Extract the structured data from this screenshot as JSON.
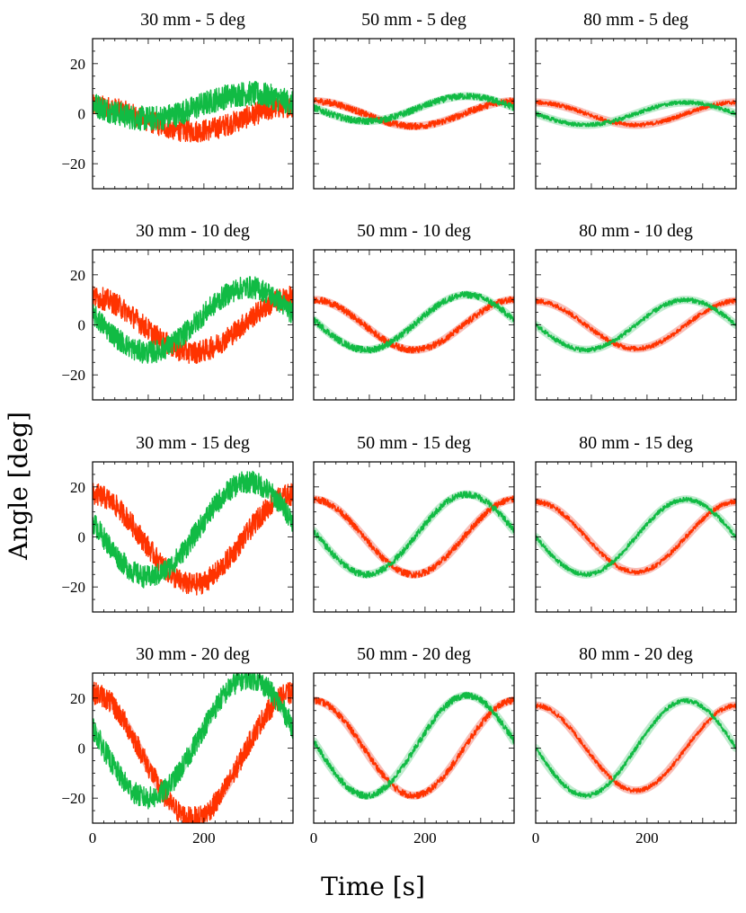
{
  "chart_data": {
    "type": "line",
    "xlabel": "Time [s]",
    "ylabel": "Angle [deg]",
    "xlim": [
      0,
      360
    ],
    "ylim": [
      -30,
      30
    ],
    "xticks": [
      0,
      200
    ],
    "xtick_labels": [
      "0",
      "200"
    ],
    "yticks": [
      -20,
      0,
      20
    ],
    "ytick_labels": [
      "−20",
      "0",
      "20"
    ],
    "series_colors": {
      "red": "#ff3300",
      "green": "#11bb44",
      "red_band": "#f7b3aa",
      "green_band": "#b5e8c6"
    },
    "panels": [
      {
        "title": "30 mm - 5 deg",
        "series": [
          {
            "name": "red",
            "amplitude": 5,
            "phase_deg": 270,
            "offset": -2,
            "noise": 4.5
          },
          {
            "name": "green",
            "amplitude": 5,
            "phase_deg": 190,
            "offset": 3,
            "noise": 5
          }
        ]
      },
      {
        "title": "50 mm - 5 deg",
        "series": [
          {
            "name": "red",
            "amplitude": 5,
            "phase_deg": 270,
            "offset": 0,
            "noise": 1.3
          },
          {
            "name": "green",
            "amplitude": 5,
            "phase_deg": 185,
            "offset": 2,
            "noise": 1.3
          }
        ]
      },
      {
        "title": "80 mm - 5 deg",
        "series": [
          {
            "name": "red",
            "amplitude": 4.5,
            "phase_deg": 270,
            "offset": 0,
            "noise": 0.8
          },
          {
            "name": "green",
            "amplitude": 4.5,
            "phase_deg": 180,
            "offset": 0,
            "noise": 0.8
          }
        ]
      },
      {
        "title": "30 mm - 10 deg",
        "series": [
          {
            "name": "red",
            "amplitude": 11,
            "phase_deg": 270,
            "offset": 0,
            "noise": 4.5
          },
          {
            "name": "green",
            "amplitude": 13,
            "phase_deg": 190,
            "offset": 2,
            "noise": 4.5
          }
        ]
      },
      {
        "title": "50 mm - 10 deg",
        "series": [
          {
            "name": "red",
            "amplitude": 10,
            "phase_deg": 270,
            "offset": 0,
            "noise": 1.3
          },
          {
            "name": "green",
            "amplitude": 11,
            "phase_deg": 185,
            "offset": 1,
            "noise": 1.3
          }
        ]
      },
      {
        "title": "80 mm - 10 deg",
        "series": [
          {
            "name": "red",
            "amplitude": 9.5,
            "phase_deg": 270,
            "offset": 0,
            "noise": 0.9
          },
          {
            "name": "green",
            "amplitude": 10,
            "phase_deg": 180,
            "offset": 0,
            "noise": 0.9
          }
        ]
      },
      {
        "title": "30 mm - 15 deg",
        "series": [
          {
            "name": "red",
            "amplitude": 18,
            "phase_deg": 270,
            "offset": -1,
            "noise": 4.5
          },
          {
            "name": "green",
            "amplitude": 19,
            "phase_deg": 190,
            "offset": 3,
            "noise": 4.5
          }
        ]
      },
      {
        "title": "50 mm - 15 deg",
        "series": [
          {
            "name": "red",
            "amplitude": 15,
            "phase_deg": 270,
            "offset": 0,
            "noise": 1.3
          },
          {
            "name": "green",
            "amplitude": 16,
            "phase_deg": 185,
            "offset": 1,
            "noise": 1.3
          }
        ]
      },
      {
        "title": "80 mm - 15 deg",
        "series": [
          {
            "name": "red",
            "amplitude": 14,
            "phase_deg": 270,
            "offset": 0,
            "noise": 0.9
          },
          {
            "name": "green",
            "amplitude": 15,
            "phase_deg": 180,
            "offset": 0,
            "noise": 0.9
          }
        ]
      },
      {
        "title": "30 mm - 20 deg",
        "series": [
          {
            "name": "red",
            "amplitude": 25,
            "phase_deg": 270,
            "offset": -3,
            "noise": 4.5
          },
          {
            "name": "green",
            "amplitude": 24,
            "phase_deg": 190,
            "offset": 4,
            "noise": 4.5
          }
        ]
      },
      {
        "title": "50 mm - 20 deg",
        "series": [
          {
            "name": "red",
            "amplitude": 19,
            "phase_deg": 270,
            "offset": 0,
            "noise": 1.3
          },
          {
            "name": "green",
            "amplitude": 20,
            "phase_deg": 185,
            "offset": 1,
            "noise": 1.3
          }
        ]
      },
      {
        "title": "80 mm - 20 deg",
        "series": [
          {
            "name": "red",
            "amplitude": 17,
            "phase_deg": 270,
            "offset": 0,
            "noise": 0.9
          },
          {
            "name": "green",
            "amplitude": 19,
            "phase_deg": 180,
            "offset": 0,
            "noise": 0.9
          }
        ]
      }
    ]
  }
}
